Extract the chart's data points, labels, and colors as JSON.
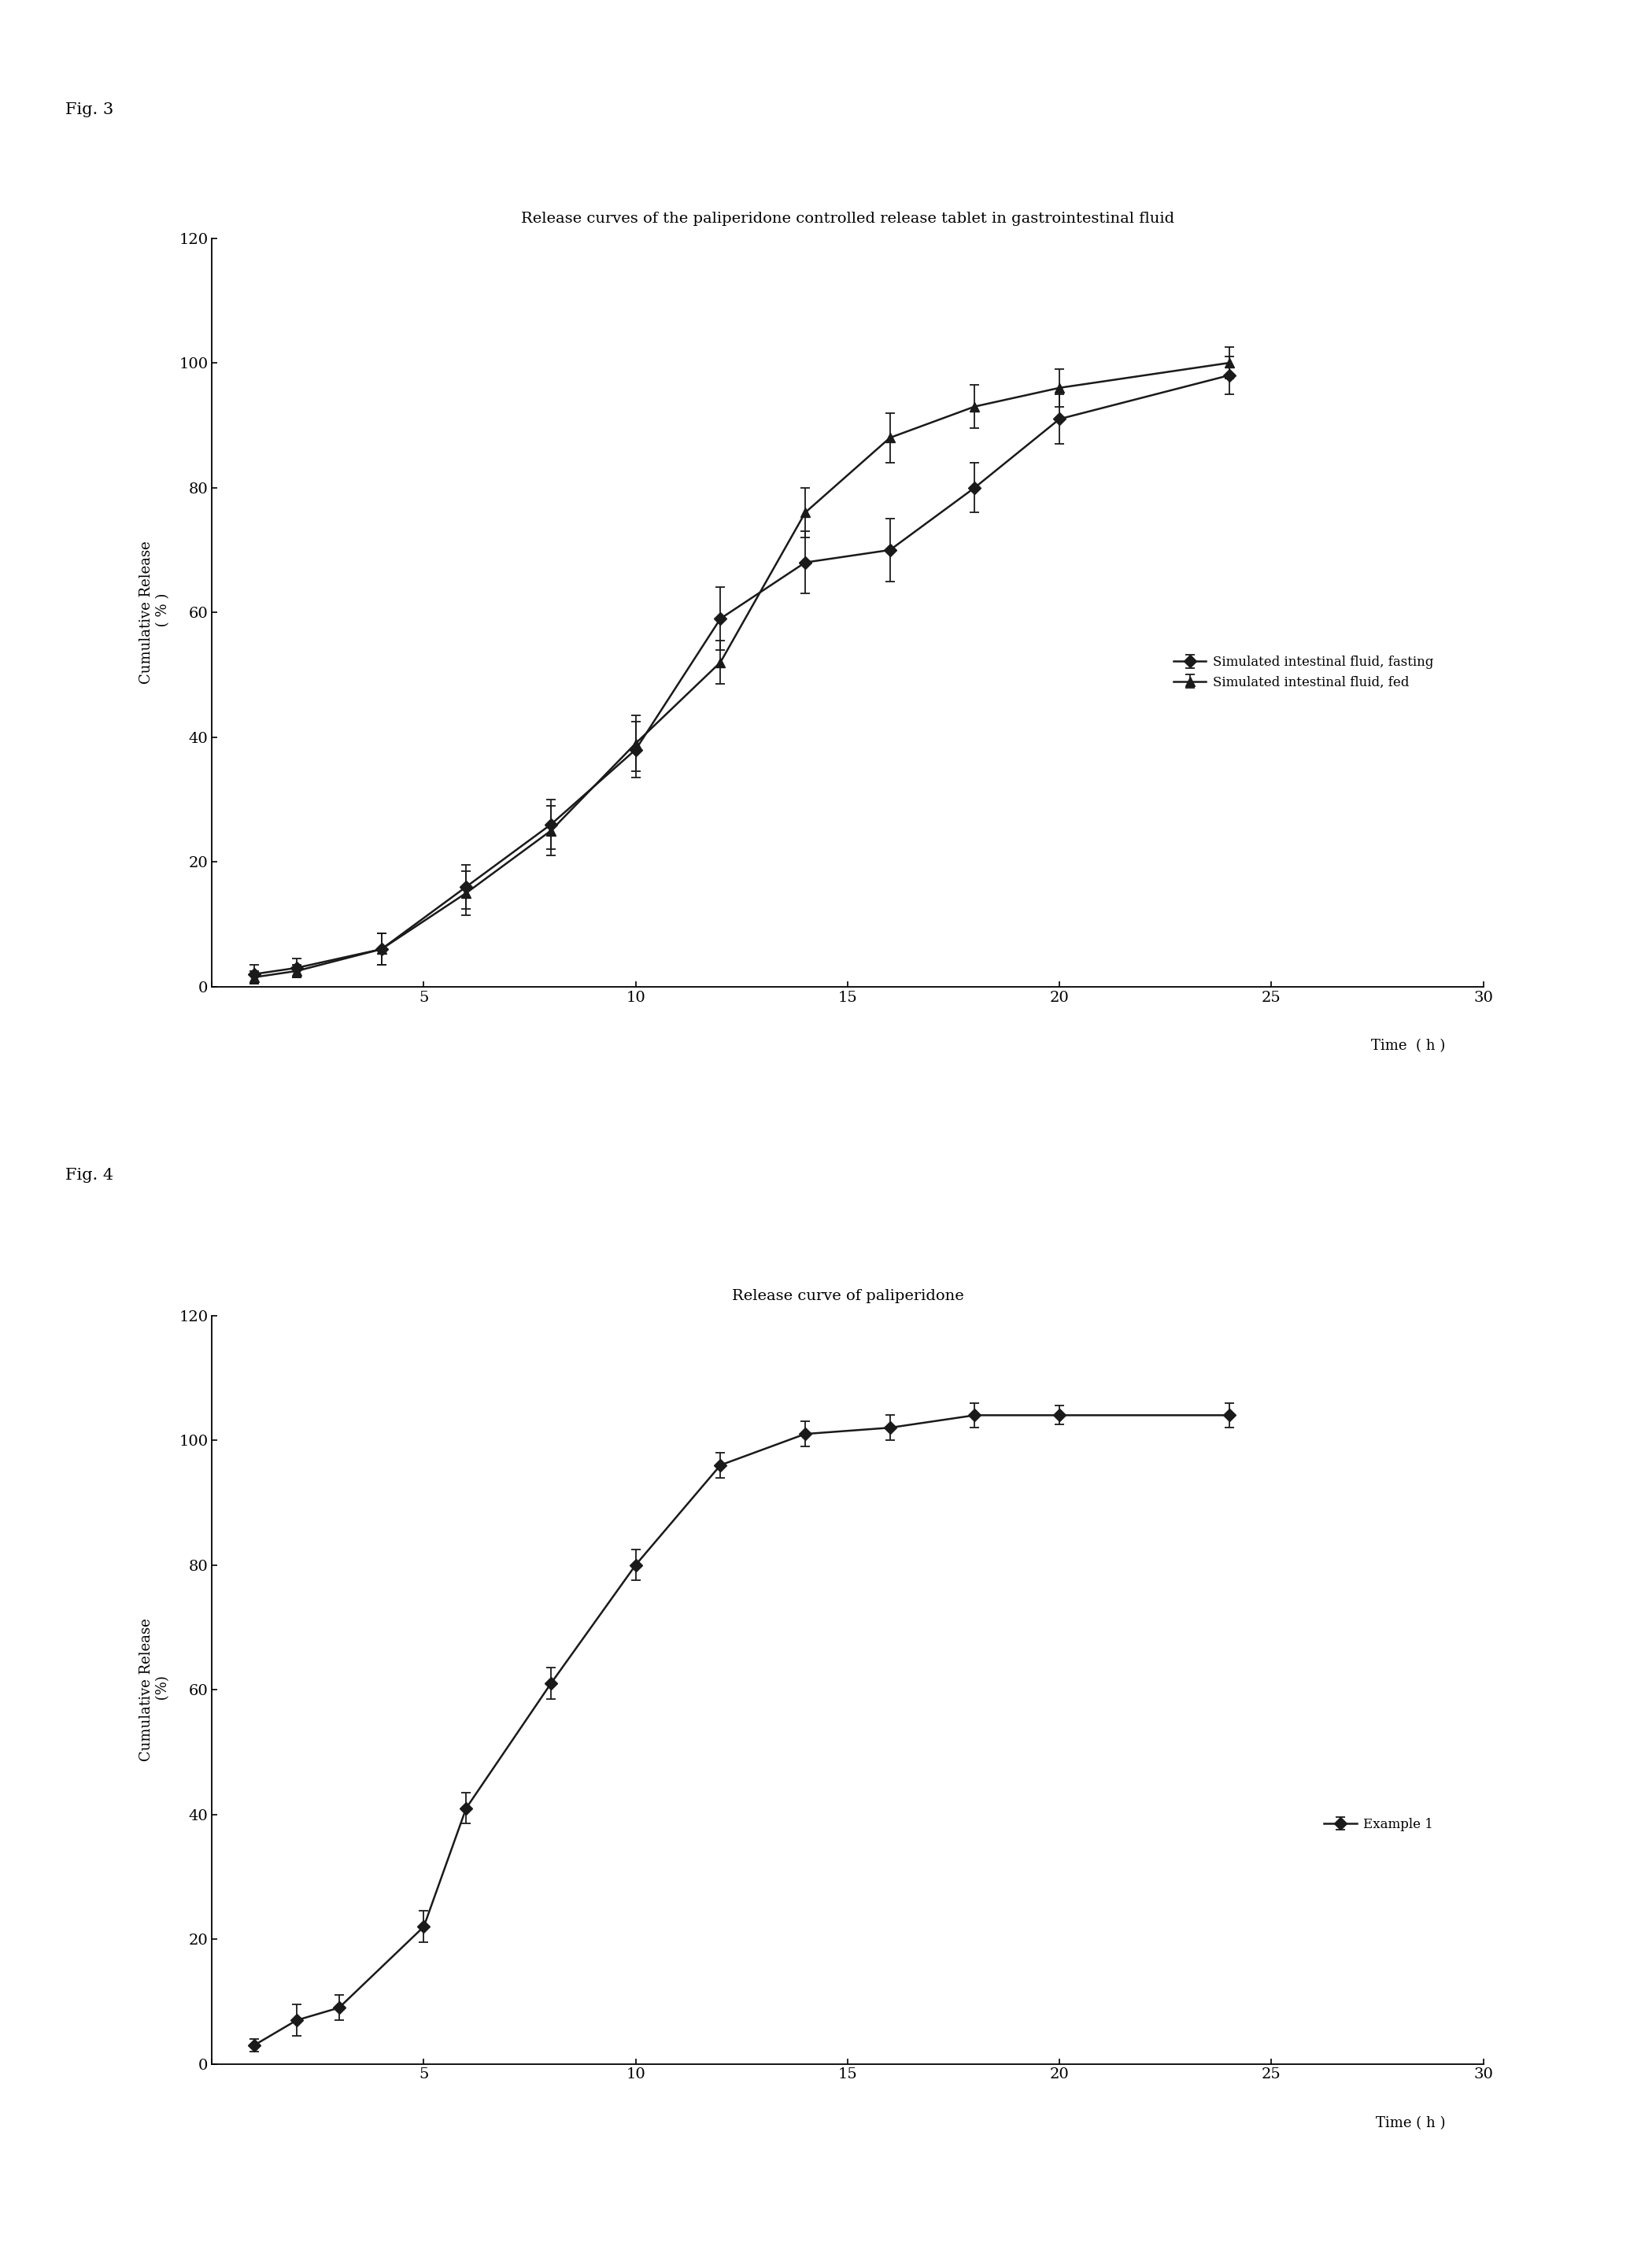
{
  "fig3": {
    "title": "Release curves of the paliperidone controlled release tablet in gastrointestinal fluid",
    "xlabel_text": "Time",
    "xlabel_unit": "  ( h )",
    "ylabel_line1": "Cumulative Release",
    "ylabel_line2": " ( % )",
    "fig_label": "Fig. 3",
    "xlim": [
      0,
      30
    ],
    "ylim": [
      0,
      120
    ],
    "xticks": [
      0,
      5,
      10,
      15,
      20,
      25,
      30
    ],
    "yticks": [
      0,
      20,
      40,
      60,
      80,
      100,
      120
    ],
    "series1": {
      "label": "Simulated intestinal fluid, fasting",
      "x": [
        1,
        2,
        4,
        6,
        8,
        10,
        12,
        14,
        16,
        18,
        20,
        24
      ],
      "y": [
        2,
        3,
        6,
        16,
        26,
        38,
        59,
        68,
        70,
        80,
        91,
        98
      ],
      "yerr": [
        1.5,
        1.5,
        2.5,
        3.5,
        4.0,
        4.5,
        5.0,
        5.0,
        5.0,
        4.0,
        4.0,
        3.0
      ],
      "marker": "D",
      "color": "#1a1a1a"
    },
    "series2": {
      "label": "Simulated intestinal fluid, fed",
      "x": [
        1,
        2,
        4,
        6,
        8,
        10,
        12,
        14,
        16,
        18,
        20,
        24
      ],
      "y": [
        1.5,
        2.5,
        6,
        15,
        25,
        39,
        52,
        76,
        88,
        93,
        96,
        100
      ],
      "yerr": [
        1.0,
        1.0,
        2.5,
        3.5,
        4.0,
        4.5,
        3.5,
        4.0,
        4.0,
        3.5,
        3.0,
        2.5
      ],
      "marker": "^",
      "color": "#1a1a1a"
    }
  },
  "fig4": {
    "title": "Release curve of paliperidone",
    "xlabel_text": "Time",
    "xlabel_unit": " ( h )",
    "ylabel_line1": "Cumulative Release",
    "ylabel_line2": " (%)",
    "fig_label": "Fig. 4",
    "xlim": [
      0,
      30
    ],
    "ylim": [
      0,
      120
    ],
    "xticks": [
      0,
      5,
      10,
      15,
      20,
      25,
      30
    ],
    "yticks": [
      0,
      20,
      40,
      60,
      80,
      100,
      120
    ],
    "series1": {
      "label": "Example 1",
      "x": [
        1,
        2,
        3,
        5,
        6,
        8,
        10,
        12,
        14,
        16,
        18,
        20,
        24
      ],
      "y": [
        3,
        7,
        9,
        22,
        41,
        61,
        80,
        96,
        101,
        102,
        104,
        104,
        104
      ],
      "yerr": [
        1.0,
        2.5,
        2.0,
        2.5,
        2.5,
        2.5,
        2.5,
        2.0,
        2.0,
        2.0,
        2.0,
        1.5,
        2.0
      ],
      "marker": "D",
      "color": "#1a1a1a"
    }
  },
  "background_color": "#ffffff",
  "line_color": "#1a1a1a",
  "font_family": "DejaVu Serif"
}
